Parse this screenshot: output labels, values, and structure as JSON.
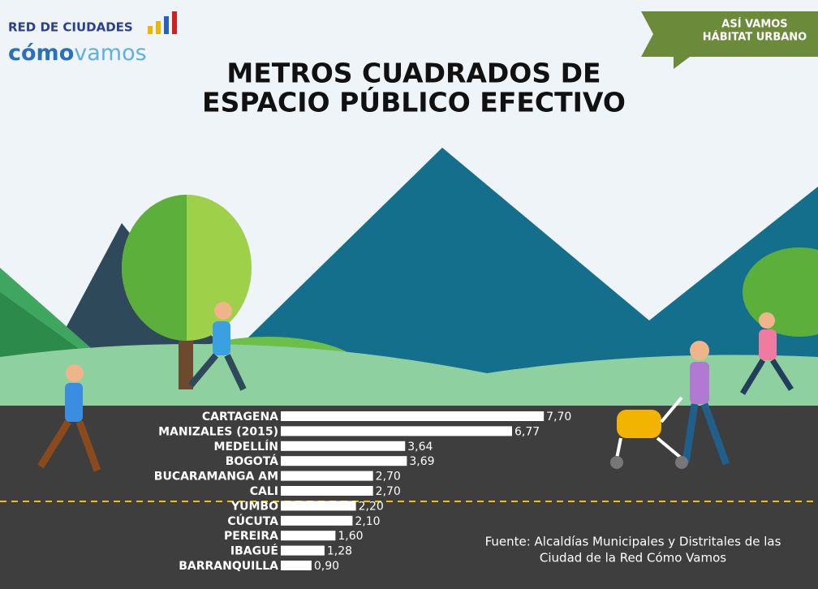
{
  "chart_data": {
    "type": "bar",
    "orientation": "horizontal",
    "title_lines": [
      "METROS CUADRADOS DE",
      "ESPACIO PÚBLICO EFECTIVO"
    ],
    "logo": {
      "line1": "RED DE CIUDADES",
      "word1": "cómo",
      "word2": "vamos"
    },
    "badge": [
      "ASÍ VAMOS",
      "HÁBITAT URBANO"
    ],
    "source_lines": [
      "Fuente: Alcaldías Municipales y Distritales de las",
      "Ciudad de la Red Cómo Vamos"
    ],
    "categories": [
      "CARTAGENA",
      "MANIZALES (2015)",
      "MEDELLÍN",
      "BOGOTÁ",
      "BUCARAMANGA AM",
      "CALI",
      "YUMBO",
      "CÚCUTA",
      "PEREIRA",
      "IBAGUÉ",
      "BARRANQUILLA"
    ],
    "values": [
      7.7,
      6.77,
      3.64,
      3.69,
      2.7,
      2.7,
      2.2,
      2.1,
      1.6,
      1.28,
      0.9
    ],
    "value_labels": [
      "7,70",
      "6,77",
      "3,64",
      "3,69",
      "2,70",
      "2,70",
      "2,20",
      "2,10",
      "1,60",
      "1,28",
      "0,90"
    ],
    "color": "#ffffff"
  }
}
